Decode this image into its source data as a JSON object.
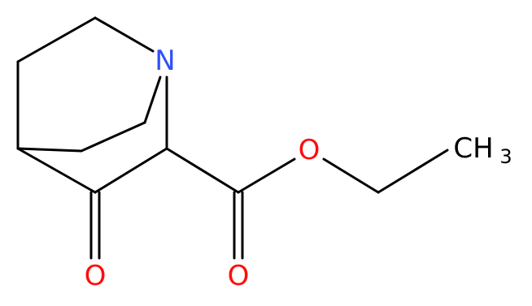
{
  "atoms": [
    {
      "label": "N"
    },
    {
      "label": "O"
    },
    {
      "label": "O"
    },
    {
      "label": "O"
    },
    {
      "label": "CH",
      "subscript": "3"
    }
  ]
}
